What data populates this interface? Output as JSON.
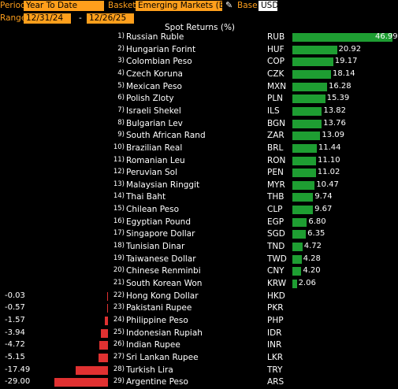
{
  "header": {
    "period_label": "Period",
    "period_value": "Year To Date",
    "basket_label": "Basket",
    "basket_value": "Emerging Markets (E",
    "base_label": "Base",
    "base_value": "USD",
    "range_label": "Range",
    "range_start": "12/31/24",
    "range_sep": "-",
    "range_end": "12/26/25",
    "pen_icon": "pencil-icon"
  },
  "table": {
    "title": "Spot Returns (%)",
    "rows": [
      {
        "rank": "1)",
        "name": "Russian Ruble",
        "code": "RUB",
        "value": "46.99",
        "num": 46.99
      },
      {
        "rank": "2)",
        "name": "Hungarian Forint",
        "code": "HUF",
        "value": "20.92",
        "num": 20.92
      },
      {
        "rank": "3)",
        "name": "Colombian Peso",
        "code": "COP",
        "value": "19.17",
        "num": 19.17
      },
      {
        "rank": "4)",
        "name": "Czech Koruna",
        "code": "CZK",
        "value": "18.14",
        "num": 18.14
      },
      {
        "rank": "5)",
        "name": "Mexican Peso",
        "code": "MXN",
        "value": "16.28",
        "num": 16.28
      },
      {
        "rank": "6)",
        "name": "Polish Zloty",
        "code": "PLN",
        "value": "15.39",
        "num": 15.39
      },
      {
        "rank": "7)",
        "name": "Israeli Shekel",
        "code": "ILS",
        "value": "13.82",
        "num": 13.82
      },
      {
        "rank": "8)",
        "name": "Bulgarian Lev",
        "code": "BGN",
        "value": "13.76",
        "num": 13.76
      },
      {
        "rank": "9)",
        "name": "South African Rand",
        "code": "ZAR",
        "value": "13.09",
        "num": 13.09
      },
      {
        "rank": "10)",
        "name": "Brazilian Real",
        "code": "BRL",
        "value": "11.44",
        "num": 11.44
      },
      {
        "rank": "11)",
        "name": "Romanian Leu",
        "code": "RON",
        "value": "11.10",
        "num": 11.1
      },
      {
        "rank": "12)",
        "name": "Peruvian Sol",
        "code": "PEN",
        "value": "11.02",
        "num": 11.02
      },
      {
        "rank": "13)",
        "name": "Malaysian Ringgit",
        "code": "MYR",
        "value": "10.47",
        "num": 10.47
      },
      {
        "rank": "14)",
        "name": "Thai Baht",
        "code": "THB",
        "value": "9.74",
        "num": 9.74
      },
      {
        "rank": "15)",
        "name": "Chilean Peso",
        "code": "CLP",
        "value": "9.67",
        "num": 9.67
      },
      {
        "rank": "16)",
        "name": "Egyptian Pound",
        "code": "EGP",
        "value": "6.80",
        "num": 6.8
      },
      {
        "rank": "17)",
        "name": "Singapore Dollar",
        "code": "SGD",
        "value": "6.35",
        "num": 6.35
      },
      {
        "rank": "18)",
        "name": "Tunisian Dinar",
        "code": "TND",
        "value": "4.72",
        "num": 4.72
      },
      {
        "rank": "19)",
        "name": "Taiwanese Dollar",
        "code": "TWD",
        "value": "4.28",
        "num": 4.28
      },
      {
        "rank": "20)",
        "name": "Chinese Renminbi",
        "code": "CNY",
        "value": "4.20",
        "num": 4.2
      },
      {
        "rank": "21)",
        "name": "South Korean Won",
        "code": "KRW",
        "value": "2.06",
        "num": 2.06
      },
      {
        "rank": "22)",
        "name": "Hong Kong Dollar",
        "code": "HKD",
        "value": "-0.03",
        "num": -0.03
      },
      {
        "rank": "23)",
        "name": "Pakistani Rupee",
        "code": "PKR",
        "value": "-0.57",
        "num": -0.57
      },
      {
        "rank": "24)",
        "name": "Philippine Peso",
        "code": "PHP",
        "value": "-1.57",
        "num": -1.57
      },
      {
        "rank": "25)",
        "name": "Indonesian Rupiah",
        "code": "IDR",
        "value": "-3.94",
        "num": -3.94
      },
      {
        "rank": "26)",
        "name": "Indian Rupee",
        "code": "INR",
        "value": "-4.72",
        "num": -4.72
      },
      {
        "rank": "27)",
        "name": "Sri Lankan Rupee",
        "code": "LKR",
        "value": "-5.15",
        "num": -5.15
      },
      {
        "rank": "28)",
        "name": "Turkish Lira",
        "code": "TRY",
        "value": "-17.49",
        "num": -17.49
      },
      {
        "rank": "29)",
        "name": "Argentine Peso",
        "code": "ARS",
        "value": "-29.00",
        "num": -29.0
      }
    ]
  },
  "colors": {
    "positive": "#1e9e32",
    "negative": "#e03131",
    "accent": "#ff9f1c"
  }
}
